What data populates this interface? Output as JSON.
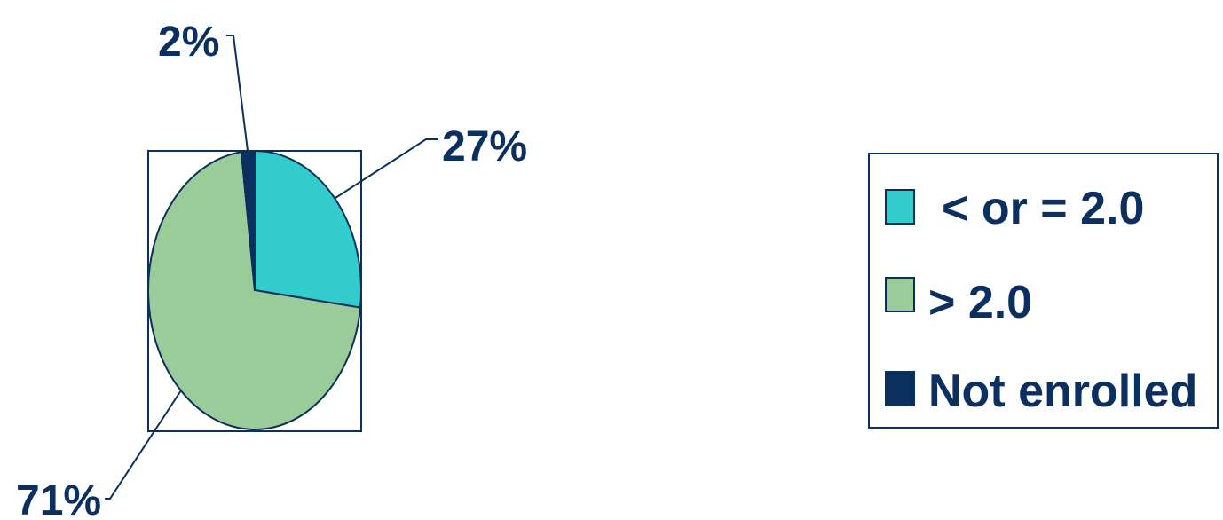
{
  "chart_data": {
    "type": "pie",
    "series": [
      {
        "name": "< or = 2.0",
        "value": 27,
        "label": "27%",
        "color": "#33cccc"
      },
      {
        "name": "> 2.0",
        "value": 71,
        "label": "71%",
        "color": "#99cc99"
      },
      {
        "name": "Not enrolled",
        "value": 2,
        "label": "2%",
        "color": "#0b2f5e"
      }
    ],
    "legend": {
      "items": [
        "< or = 2.0",
        "> 2.0",
        "Not enrolled"
      ],
      "placement": "right"
    },
    "colors": {
      "text": "#0b2f5e",
      "outline": "#0b2f5e"
    }
  }
}
